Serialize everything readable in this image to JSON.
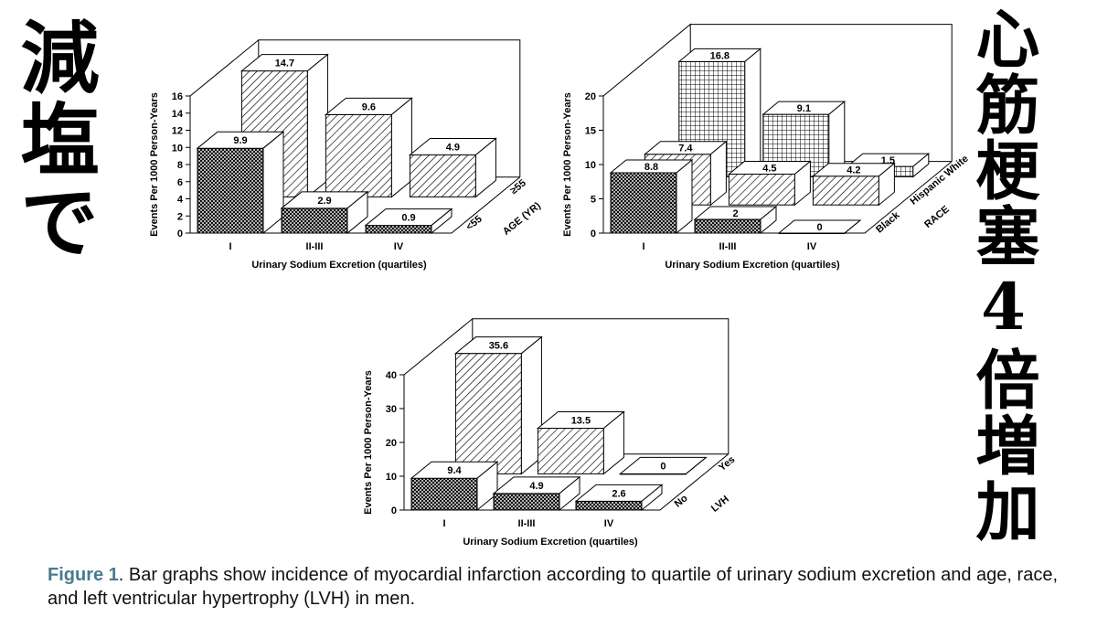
{
  "headline_left": "減塩で",
  "headline_right": "心筋梗塞4倍増加",
  "caption": {
    "figure_label": "Figure 1",
    "text": ". Bar graphs show incidence of myocardial infarction according to quartile of urinary sodium excretion and age, race, and left ventricular hypertrophy (LVH) in men."
  },
  "colors": {
    "caption_label": "#4a7a8c",
    "ink": "#000000",
    "background": "#ffffff"
  },
  "chart_data": [
    {
      "type": "bar",
      "style": "3d-grouped",
      "ylabel": "Events Per 1000 Person-Years",
      "xlabel": "Urinary Sodium Excretion (quartiles)",
      "categories": [
        "I",
        "II-III",
        "IV"
      ],
      "ylim": [
        0,
        16
      ],
      "yticks": [
        0,
        2,
        4,
        6,
        8,
        10,
        12,
        14,
        16
      ],
      "depth_label": "AGE (YR)",
      "series": [
        {
          "name": "<55",
          "values": [
            9.9,
            2.9,
            0.9
          ],
          "labels": [
            "9.9",
            "2.9",
            "0.9"
          ],
          "pattern": "crosshatch"
        },
        {
          "name": "≥55",
          "values": [
            14.7,
            9.6,
            4.9
          ],
          "labels": [
            "14.7",
            "9.6",
            "4.9"
          ],
          "pattern": "diagonal"
        }
      ]
    },
    {
      "type": "bar",
      "style": "3d-grouped",
      "ylabel": "Events Per 1000 Person-Years",
      "xlabel": "Urinary Sodium Excretion (quartiles)",
      "categories": [
        "I",
        "II-III",
        "IV"
      ],
      "ylim": [
        0,
        20
      ],
      "yticks": [
        0,
        5,
        10,
        15,
        20
      ],
      "depth_label": "RACE",
      "series": [
        {
          "name": "Black",
          "values": [
            8.8,
            2,
            0
          ],
          "labels": [
            "8.8",
            "2",
            "0"
          ],
          "pattern": "crosshatch"
        },
        {
          "name": "Hispanic",
          "values": [
            7.4,
            4.5,
            4.2
          ],
          "labels": [
            "7.4",
            "4.5",
            "4.2"
          ],
          "pattern": "diagonal"
        },
        {
          "name": "White",
          "values": [
            16.8,
            9.1,
            1.5
          ],
          "labels": [
            "16.8",
            "9.1",
            "1.5"
          ],
          "pattern": "grid"
        }
      ]
    },
    {
      "type": "bar",
      "style": "3d-grouped",
      "ylabel": "Events Per 1000 Person-Years",
      "xlabel": "Urinary Sodium Excretion (quartiles)",
      "categories": [
        "I",
        "II-III",
        "IV"
      ],
      "ylim": [
        0,
        40
      ],
      "yticks": [
        0,
        10,
        20,
        30,
        40
      ],
      "depth_label": "LVH",
      "series": [
        {
          "name": "No",
          "values": [
            9.4,
            4.9,
            2.6
          ],
          "labels": [
            "9.4",
            "4.9",
            "2.6"
          ],
          "pattern": "crosshatch"
        },
        {
          "name": "Yes",
          "values": [
            35.6,
            13.5,
            0
          ],
          "labels": [
            "35.6",
            "13.5",
            "0"
          ],
          "pattern": "diagonal"
        }
      ]
    }
  ]
}
